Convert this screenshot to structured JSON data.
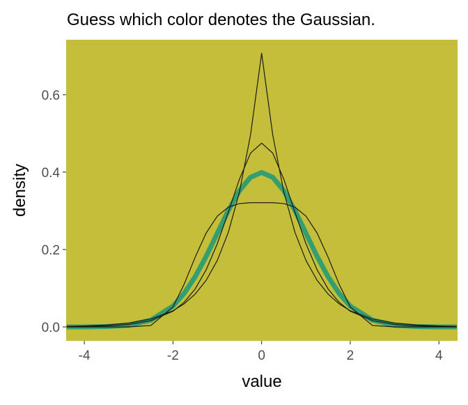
{
  "chart_data": {
    "type": "line",
    "title": "Guess which color denotes the Gaussian.",
    "x_label": "value",
    "y_label": "density",
    "background": "#c4be3a",
    "x": [
      -4.4,
      -4,
      -3.5,
      -3,
      -2.5,
      -2,
      -1.75,
      -1.5,
      -1.25,
      -1,
      -0.75,
      -0.5,
      -0.25,
      0,
      0.25,
      0.5,
      0.75,
      1,
      1.25,
      1.5,
      1.75,
      2,
      2.5,
      3,
      3.5,
      4,
      4.4
    ],
    "series": [
      {
        "color": "#339e70",
        "width": 7,
        "values": [
          0,
          0.0001,
          0.0009,
          0.0044,
          0.0175,
          0.054,
          0.0863,
          0.1295,
          0.1826,
          0.242,
          0.3011,
          0.3521,
          0.3867,
          0.399,
          0.3867,
          0.3521,
          0.3011,
          0.242,
          0.1826,
          0.1295,
          0.0863,
          0.054,
          0.0175,
          0.0044,
          0.0009,
          0.0001,
          0
        ]
      },
      {
        "color": "#1a1a1a",
        "width": 1.2,
        "values": [
          0.0014,
          0.0025,
          0.005,
          0.0102,
          0.0206,
          0.0418,
          0.0595,
          0.0848,
          0.1207,
          0.1719,
          0.2448,
          0.3487,
          0.4965,
          0.707,
          0.4965,
          0.3487,
          0.2448,
          0.1719,
          0.1207,
          0.0848,
          0.0595,
          0.0418,
          0.0206,
          0.0102,
          0.005,
          0.0025,
          0.0014
        ]
      },
      {
        "color": "#1a1a1a",
        "width": 1.2,
        "values": [
          0.0004,
          0.0009,
          0.0024,
          0.0063,
          0.0163,
          0.0406,
          0.0636,
          0.098,
          0.148,
          0.215,
          0.297,
          0.382,
          0.449,
          0.475,
          0.449,
          0.382,
          0.297,
          0.215,
          0.148,
          0.098,
          0.0636,
          0.0406,
          0.0163,
          0.0063,
          0.0024,
          0.0009,
          0.0004
        ]
      },
      {
        "color": "#1a1a1a",
        "width": 1.2,
        "values": [
          0,
          0,
          0,
          3e-05,
          0.0037,
          0.0516,
          0.11,
          0.18,
          0.2429,
          0.2863,
          0.3096,
          0.3187,
          0.321,
          0.321,
          0.321,
          0.3187,
          0.3096,
          0.2863,
          0.2429,
          0.18,
          0.11,
          0.0516,
          0.0037,
          3e-05,
          0,
          0,
          0
        ]
      }
    ],
    "xlim": [
      -4.41,
      4.42
    ],
    "ylim": [
      -0.036,
      0.742
    ],
    "xticks": [
      -4,
      -2,
      0,
      2,
      4
    ],
    "yticks": [
      {
        "value": 0,
        "label": "0.0"
      },
      0.2,
      0.4,
      0.6
    ]
  }
}
